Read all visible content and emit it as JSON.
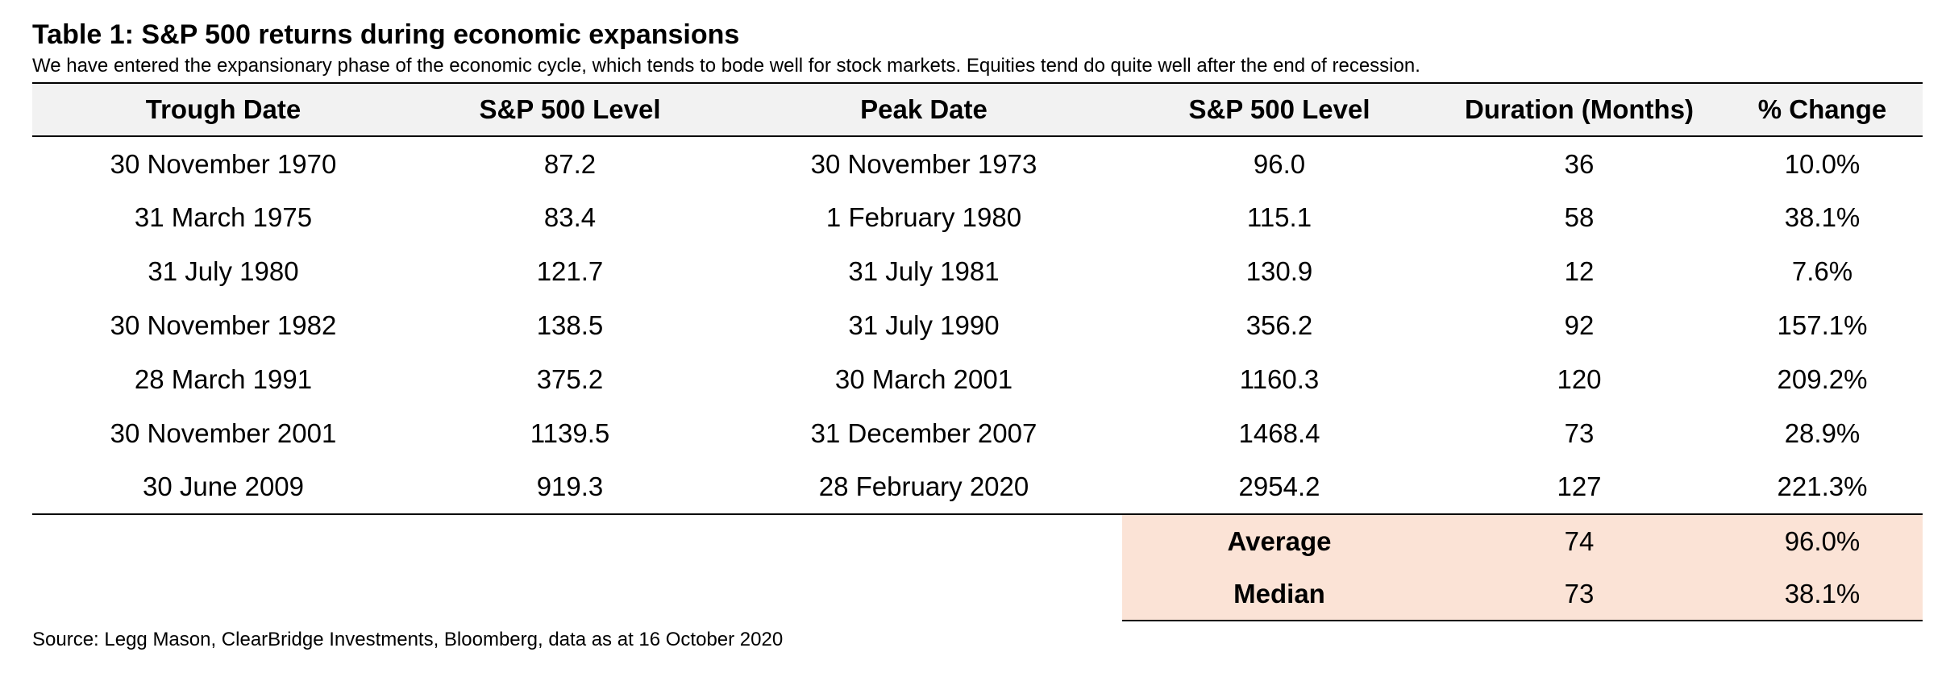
{
  "title": "Table 1: S&P 500 returns during economic expansions",
  "subtitle": "We have entered the expansionary phase of the economic cycle, which tends to bode well for stock markets. Equities tend do quite well after the end of recession.",
  "columns": [
    "Trough Date",
    "S&P 500 Level",
    "Peak Date",
    "S&P 500 Level",
    "Duration (Months)",
    "% Change"
  ],
  "rows": [
    [
      "30 November 1970",
      "87.2",
      "30 November 1973",
      "96.0",
      "36",
      "10.0%"
    ],
    [
      "31 March 1975",
      "83.4",
      "1 February 1980",
      "115.1",
      "58",
      "38.1%"
    ],
    [
      "31 July 1980",
      "121.7",
      "31 July 1981",
      "130.9",
      "12",
      "7.6%"
    ],
    [
      "30 November 1982",
      "138.5",
      "31 July 1990",
      "356.2",
      "92",
      "157.1%"
    ],
    [
      "28 March 1991",
      "375.2",
      "30 March 2001",
      "1160.3",
      "120",
      "209.2%"
    ],
    [
      "30 November 2001",
      "1139.5",
      "31 December 2007",
      "1468.4",
      "73",
      "28.9%"
    ],
    [
      "30 June 2009",
      "919.3",
      "28 February 2020",
      "2954.2",
      "127",
      "221.3%"
    ]
  ],
  "summary": [
    {
      "label": "Average",
      "duration": "74",
      "change": "96.0%"
    },
    {
      "label": "Median",
      "duration": "73",
      "change": "38.1%"
    }
  ],
  "source": "Source: Legg Mason, ClearBridge Investments, Bloomberg, data as at 16 October 2020",
  "colors": {
    "header_bg": "#f2f2f2",
    "summary_bg": "#fbe3d6",
    "rule": "#000000"
  }
}
